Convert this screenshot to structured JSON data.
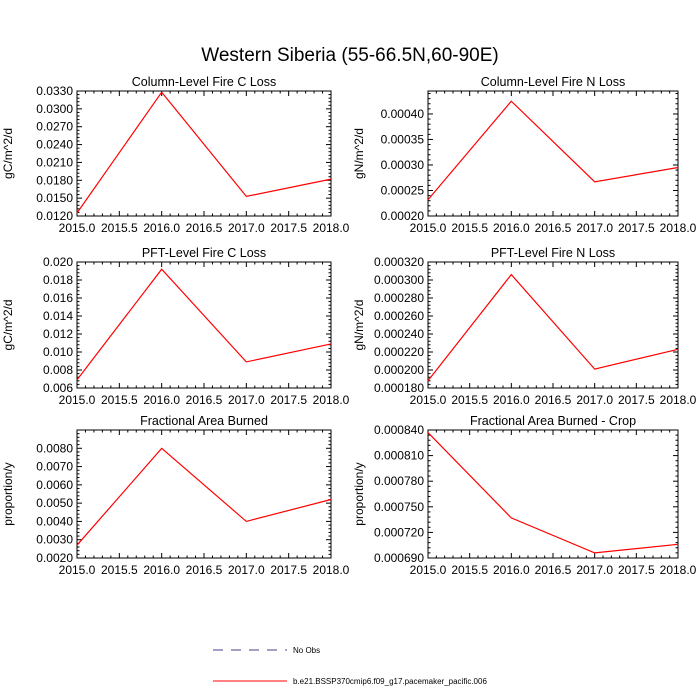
{
  "figure": {
    "title": "Western Siberia (55-66.5N,60-90E)"
  },
  "legend": [
    {
      "label": "No Obs",
      "color": "#4b3f8f",
      "style": "dashed"
    },
    {
      "label": "b.e21.BSSP370cmip6.f09_g17.pacemaker_pacific.006",
      "color": "#ff0000",
      "style": "solid"
    }
  ],
  "colors": {
    "series": "#ff0000",
    "axis": "#000000",
    "background": "#ffffff"
  },
  "chart_data": [
    {
      "type": "line",
      "title": "Column-Level Fire C Loss",
      "xlabel": "",
      "ylabel": "gC/m^2/d",
      "xlim": [
        2015.0,
        2018.0
      ],
      "ylim": [
        0.012,
        0.033
      ],
      "xticks": [
        "2015.0",
        "2015.5",
        "2016.0",
        "2016.5",
        "2017.0",
        "2017.5",
        "2018.0"
      ],
      "yticks": [
        "0.0120",
        "0.0150",
        "0.0180",
        "0.0210",
        "0.0240",
        "0.0270",
        "0.0300",
        "0.0330"
      ],
      "series": [
        {
          "x": [
            2015,
            2016,
            2017,
            2018
          ],
          "y": [
            0.0125,
            0.0328,
            0.0153,
            0.0182
          ]
        }
      ]
    },
    {
      "type": "line",
      "title": "Column-Level Fire N Loss",
      "xlabel": "",
      "ylabel": "gN/m^2/d",
      "xlim": [
        2015.0,
        2018.0
      ],
      "ylim": [
        0.0002,
        0.000445
      ],
      "xticks": [
        "2015.0",
        "2015.5",
        "2016.0",
        "2016.5",
        "2017.0",
        "2017.5",
        "2018.0"
      ],
      "yticks": [
        "0.00020",
        "0.00025",
        "0.00030",
        "0.00035",
        "0.00040"
      ],
      "series": [
        {
          "x": [
            2015,
            2016,
            2017,
            2018
          ],
          "y": [
            0.000232,
            0.000425,
            0.000267,
            0.000295
          ]
        }
      ]
    },
    {
      "type": "line",
      "title": "PFT-Level Fire C Loss",
      "xlabel": "",
      "ylabel": "gC/m^2/d",
      "xlim": [
        2015.0,
        2018.0
      ],
      "ylim": [
        0.006,
        0.02
      ],
      "xticks": [
        "2015.0",
        "2015.5",
        "2016.0",
        "2016.5",
        "2017.0",
        "2017.5",
        "2018.0"
      ],
      "yticks": [
        "0.006",
        "0.008",
        "0.010",
        "0.012",
        "0.014",
        "0.016",
        "0.018",
        "0.020"
      ],
      "series": [
        {
          "x": [
            2015,
            2016,
            2017,
            2018
          ],
          "y": [
            0.0069,
            0.0192,
            0.0089,
            0.0109
          ]
        }
      ]
    },
    {
      "type": "line",
      "title": "PFT-Level Fire N Loss",
      "xlabel": "",
      "ylabel": "gN/m^2/d",
      "xlim": [
        2015.0,
        2018.0
      ],
      "ylim": [
        0.00018,
        0.00032
      ],
      "xticks": [
        "2015.0",
        "2015.5",
        "2016.0",
        "2016.5",
        "2017.0",
        "2017.5",
        "2018.0"
      ],
      "yticks": [
        "0.000180",
        "0.000200",
        "0.000220",
        "0.000240",
        "0.000260",
        "0.000280",
        "0.000300",
        "0.000320"
      ],
      "series": [
        {
          "x": [
            2015,
            2016,
            2017,
            2018
          ],
          "y": [
            0.000188,
            0.000306,
            0.000201,
            0.000223
          ]
        }
      ]
    },
    {
      "type": "line",
      "title": "Fractional Area Burned",
      "xlabel": "",
      "ylabel": "proportion/y",
      "xlim": [
        2015.0,
        2018.0
      ],
      "ylim": [
        0.002,
        0.009
      ],
      "xticks": [
        "2015.0",
        "2015.5",
        "2016.0",
        "2016.5",
        "2017.0",
        "2017.5",
        "2018.0"
      ],
      "yticks": [
        "0.0020",
        "0.0030",
        "0.0040",
        "0.0050",
        "0.0060",
        "0.0070",
        "0.0080"
      ],
      "series": [
        {
          "x": [
            2015,
            2016,
            2017,
            2018
          ],
          "y": [
            0.0027,
            0.008,
            0.004,
            0.0052
          ]
        }
      ]
    },
    {
      "type": "line",
      "title": "Fractional Area Burned - Crop",
      "xlabel": "",
      "ylabel": "proportion/y",
      "xlim": [
        2015.0,
        2018.0
      ],
      "ylim": [
        0.00069,
        0.00084
      ],
      "xticks": [
        "2015.0",
        "2015.5",
        "2016.0",
        "2016.5",
        "2017.0",
        "2017.5",
        "2018.0"
      ],
      "yticks": [
        "0.000690",
        "0.000720",
        "0.000750",
        "0.000780",
        "0.000810",
        "0.000840"
      ],
      "series": [
        {
          "x": [
            2015,
            2016,
            2017,
            2018
          ],
          "y": [
            0.000837,
            0.000737,
            0.000696,
            0.000706
          ]
        }
      ]
    }
  ]
}
